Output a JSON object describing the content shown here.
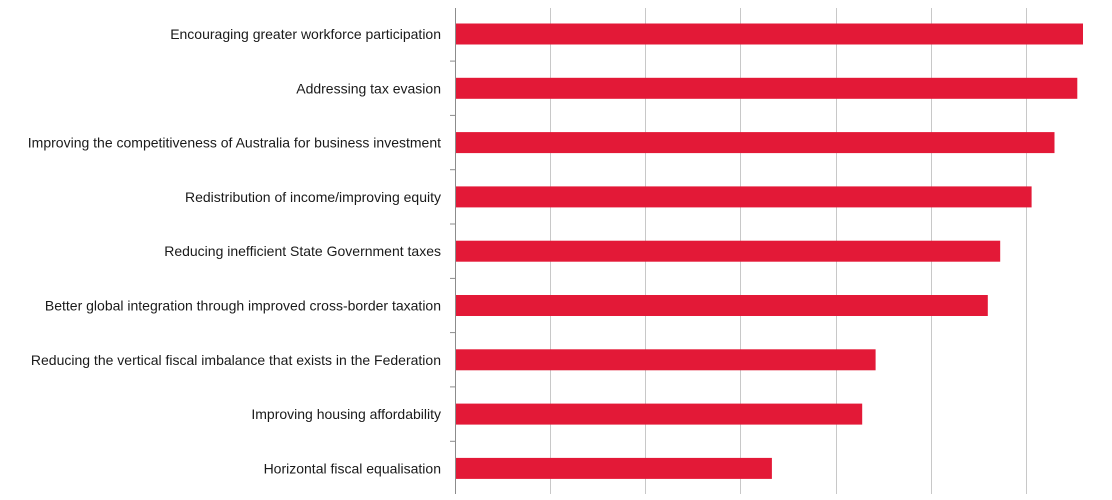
{
  "chart_data": {
    "type": "bar",
    "orientation": "horizontal",
    "title": "",
    "xlabel": "",
    "ylabel": "",
    "categories": [
      "Encouraging greater workforce participation",
      "Addressing tax evasion",
      "Improving the competitiveness of Australia for business investment",
      "Redistribution of income/improving equity",
      "Reducing inefficient State Government taxes",
      "Better global integration through improved cross-border taxation",
      "Reducing the vertical fiscal imbalance that exists in the Federation",
      "Improving housing affordability",
      "Horizontal fiscal equalisation"
    ],
    "values": [
      6.6,
      6.54,
      6.3,
      6.06,
      5.73,
      5.6,
      4.42,
      4.28,
      3.33
    ],
    "xlim": [
      0,
      6.6
    ],
    "x_gridlines": [
      1,
      2,
      3,
      4,
      5,
      6
    ],
    "tick_labels_visible": false,
    "grid": true,
    "legend": "none",
    "bar_color": "#e31937",
    "grid_color": "#c8c8c8",
    "axis_color": "#8c8c8c"
  }
}
